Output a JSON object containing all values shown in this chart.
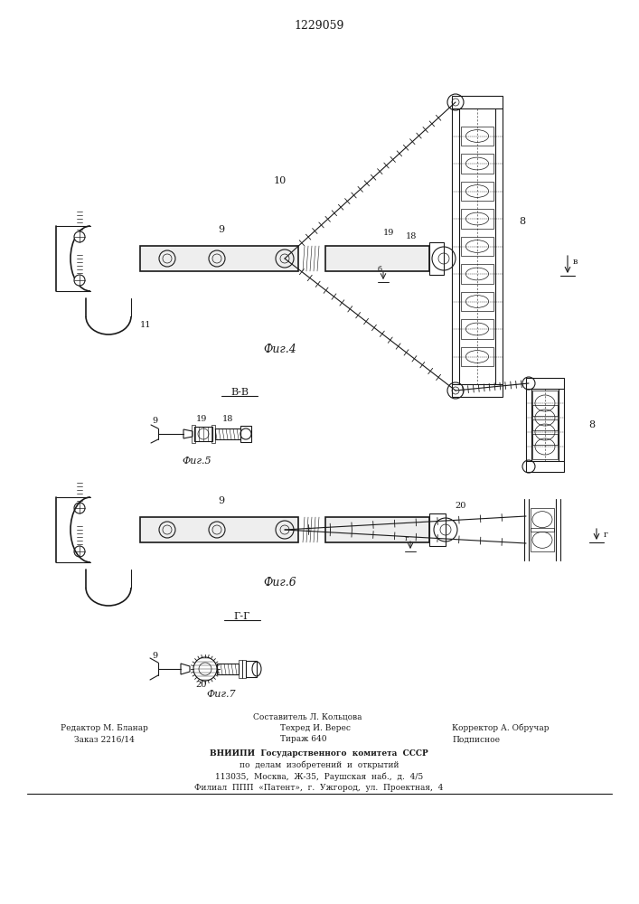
{
  "title": "1229059",
  "bg_color": "#ffffff",
  "line_color": "#1a1a1a",
  "fig4_label": "Фиг.4",
  "fig5_label": "Фиг.5",
  "fig6_label": "Фиг.6",
  "fig7_label": "Фиг.7",
  "bb_label": "В-В",
  "gg_label": "Г-Г",
  "footer_col1_line1": "Редактор М. Бланар",
  "footer_col1_line2": "Заказ 2216/14",
  "footer_col2_line1": "Составитель Л. Кольцова",
  "footer_col2_line2": "Техред И. Верес",
  "footer_col2_line3": "Тираж 640",
  "footer_col3_line2": "Корректор А. Обручар",
  "footer_col3_line3": "Подписное",
  "footer_vniip1": "ВНИИПИ  Государственного  комитета  СССР",
  "footer_vniip2": "по  делам  изобретений  и  открытий",
  "footer_vniip3": "113035,  Москва,  Ж-35,  Раушская  наб.,  д.  4/5",
  "footer_vniip4": "Филиал  ППП  «Патент»,  г.  Ужгород,  ул.  Проектная,  4"
}
